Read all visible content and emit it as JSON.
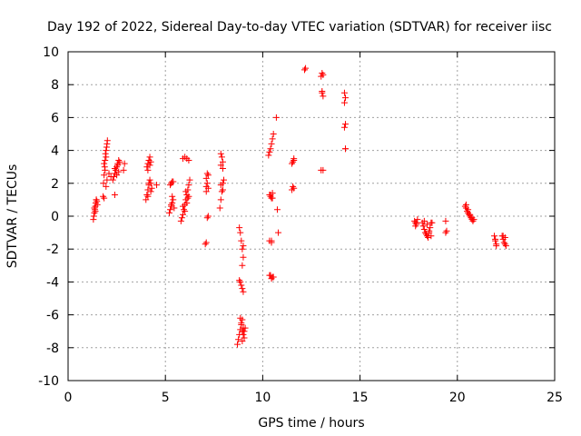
{
  "chart_data": {
    "type": "scatter",
    "title": "Day 192 of 2022, Sidereal Day-to-day VTEC variation (SDTVAR) for receiver iisc",
    "xlabel": "GPS time / hours",
    "ylabel": "SDTVAR / TECUs",
    "xlim": [
      0,
      25
    ],
    "ylim": [
      -10,
      10
    ],
    "xticks": [
      0,
      5,
      10,
      15,
      20,
      25
    ],
    "yticks": [
      -10,
      -8,
      -6,
      -4,
      -2,
      0,
      2,
      4,
      6,
      8,
      10
    ],
    "grid": true,
    "marker": "plus",
    "color": "#ff0000",
    "series": [
      {
        "name": "SDTVAR",
        "x": [
          1.3,
          1.32,
          1.35,
          1.38,
          1.4,
          1.42,
          1.45,
          1.48,
          1.5,
          1.35,
          1.4,
          1.45,
          1.8,
          1.82,
          1.85,
          1.88,
          1.9,
          1.92,
          1.95,
          1.98,
          2.0,
          2.02,
          1.85,
          1.9,
          1.95,
          2.0,
          1.85,
          1.95,
          2.2,
          2.1,
          2.3,
          2.35,
          2.4,
          2.45,
          2.5,
          2.55,
          2.6,
          2.65,
          2.4,
          2.5,
          2.6,
          2.55,
          2.4,
          2.85,
          2.9,
          4.0,
          4.05,
          4.1,
          4.15,
          4.2,
          4.25,
          4.3,
          4.05,
          4.1,
          4.15,
          4.2,
          4.25,
          4.1,
          4.2,
          4.15,
          4.1,
          4.25,
          4.55,
          5.2,
          5.25,
          5.3,
          5.35,
          5.4,
          5.45,
          5.3,
          5.35,
          5.25,
          5.4,
          5.3,
          5.35,
          5.8,
          5.85,
          5.9,
          5.95,
          6.0,
          6.05,
          6.1,
          6.15,
          6.2,
          6.25,
          5.9,
          6.0,
          6.1,
          6.2,
          6.05,
          6.15,
          6.0,
          6.1,
          6.2,
          5.9,
          7.05,
          7.1,
          7.15,
          7.2,
          7.1,
          7.15,
          7.1,
          7.15,
          7.2,
          7.1,
          7.2,
          7.8,
          7.85,
          7.9,
          7.95,
          8.0,
          7.85,
          7.9,
          7.95,
          7.85,
          7.95,
          7.85,
          7.95,
          8.7,
          8.75,
          8.8,
          8.85,
          8.9,
          8.95,
          9.0,
          8.8,
          8.85,
          8.9,
          8.95,
          9.0,
          8.8,
          8.85,
          8.9,
          8.95,
          9.0,
          8.95,
          9.0,
          8.95,
          9.0,
          9.05,
          8.9,
          8.85,
          8.95,
          9.05,
          9.1,
          10.3,
          10.35,
          10.4,
          10.45,
          10.5,
          10.55,
          10.35,
          10.4,
          10.45,
          10.5,
          10.35,
          10.45,
          10.4,
          10.5,
          10.35,
          10.45,
          10.55,
          10.4,
          10.5,
          10.45,
          10.7,
          10.75,
          10.8,
          11.5,
          11.55,
          11.6,
          11.5,
          11.55,
          11.6,
          11.6,
          12.15,
          12.2,
          13.0,
          13.05,
          13.1,
          13.05,
          13.1,
          13.0,
          13.1,
          13.05,
          14.2,
          14.25,
          14.2,
          14.25,
          14.2,
          14.25,
          14.25,
          17.8,
          17.85,
          17.9,
          17.95,
          17.85,
          17.9,
          18.2,
          18.25,
          18.3,
          18.35,
          18.4,
          18.45,
          18.5,
          18.55,
          18.6,
          18.65,
          18.3,
          18.45,
          18.55,
          18.7,
          18.65,
          19.4,
          19.45,
          19.4,
          20.4,
          20.45,
          20.5,
          20.55,
          20.6,
          20.65,
          20.7,
          20.75,
          20.8,
          20.85,
          20.45,
          20.55,
          20.65,
          20.75,
          21.9,
          21.95,
          22.0,
          21.95,
          22.0,
          22.3,
          22.35,
          22.4,
          22.45,
          22.5,
          22.35,
          22.45
        ],
        "y": [
          -0.2,
          0.0,
          0.2,
          0.4,
          0.6,
          0.8,
          1.0,
          0.9,
          0.7,
          0.5,
          0.3,
          1.0,
          1.2,
          2.0,
          2.5,
          3.0,
          3.4,
          3.8,
          4.0,
          4.2,
          4.4,
          4.6,
          3.2,
          2.8,
          3.6,
          2.2,
          1.1,
          1.8,
          2.4,
          2.6,
          2.2,
          2.4,
          2.6,
          2.8,
          3.0,
          3.2,
          3.4,
          3.3,
          2.9,
          2.5,
          2.7,
          3.1,
          1.3,
          2.8,
          3.2,
          1.0,
          1.3,
          1.6,
          1.9,
          2.2,
          2.0,
          1.7,
          3.0,
          3.2,
          3.4,
          3.6,
          3.3,
          2.8,
          3.1,
          2.0,
          1.2,
          1.5,
          1.9,
          0.2,
          0.4,
          0.6,
          0.8,
          1.0,
          0.5,
          2.0,
          2.1,
          1.9,
          2.1,
          0.7,
          1.2,
          -0.3,
          -0.1,
          0.1,
          0.4,
          0.7,
          1.0,
          1.3,
          1.6,
          1.9,
          2.2,
          3.5,
          3.6,
          3.5,
          3.4,
          1.5,
          1.1,
          0.3,
          0.8,
          1.2,
          0.6,
          -1.7,
          -1.6,
          -0.1,
          0.0,
          1.8,
          2.0,
          2.3,
          2.6,
          2.5,
          1.5,
          1.7,
          0.5,
          1.0,
          1.5,
          2.0,
          2.2,
          3.8,
          3.6,
          3.3,
          3.1,
          2.9,
          1.9,
          1.6,
          -7.8,
          -7.5,
          -7.2,
          -6.9,
          -6.6,
          -6.3,
          -6.8,
          -3.9,
          -4.0,
          -4.2,
          -4.4,
          -4.6,
          -0.7,
          -1.0,
          -1.5,
          -2.0,
          -2.5,
          -3.0,
          -1.8,
          -7.0,
          -7.2,
          -7.4,
          -6.5,
          -6.2,
          -7.6,
          -7.0,
          -6.8,
          3.7,
          3.9,
          4.1,
          4.4,
          4.7,
          5.0,
          1.3,
          1.2,
          1.1,
          1.4,
          -1.5,
          -1.6,
          -3.6,
          -3.7,
          -3.6,
          -3.8,
          -3.7,
          1.3,
          1.1,
          -1.5,
          6.0,
          0.4,
          -1.0,
          1.6,
          1.8,
          1.7,
          3.2,
          3.3,
          3.4,
          3.5,
          8.9,
          9.0,
          8.5,
          8.7,
          8.6,
          7.5,
          7.3,
          2.8,
          2.8,
          7.6,
          6.9,
          7.2,
          7.5,
          5.6,
          5.4,
          4.1,
          4.1,
          -0.3,
          -0.4,
          -0.5,
          -0.2,
          -0.6,
          -0.4,
          -0.4,
          -0.6,
          -0.8,
          -1.0,
          -1.1,
          -1.2,
          -1.3,
          -1.0,
          -0.7,
          -0.4,
          -0.3,
          -0.5,
          -0.9,
          -0.4,
          -1.2,
          -0.3,
          -0.9,
          -1.0,
          0.6,
          0.5,
          0.3,
          0.2,
          0.1,
          0.0,
          -0.1,
          -0.2,
          -0.3,
          -0.2,
          0.7,
          0.4,
          0.1,
          -0.1,
          -1.2,
          -1.5,
          -1.8,
          -1.4,
          -1.7,
          -1.2,
          -1.4,
          -1.6,
          -1.7,
          -1.8,
          -1.2,
          -1.3
        ]
      }
    ]
  }
}
